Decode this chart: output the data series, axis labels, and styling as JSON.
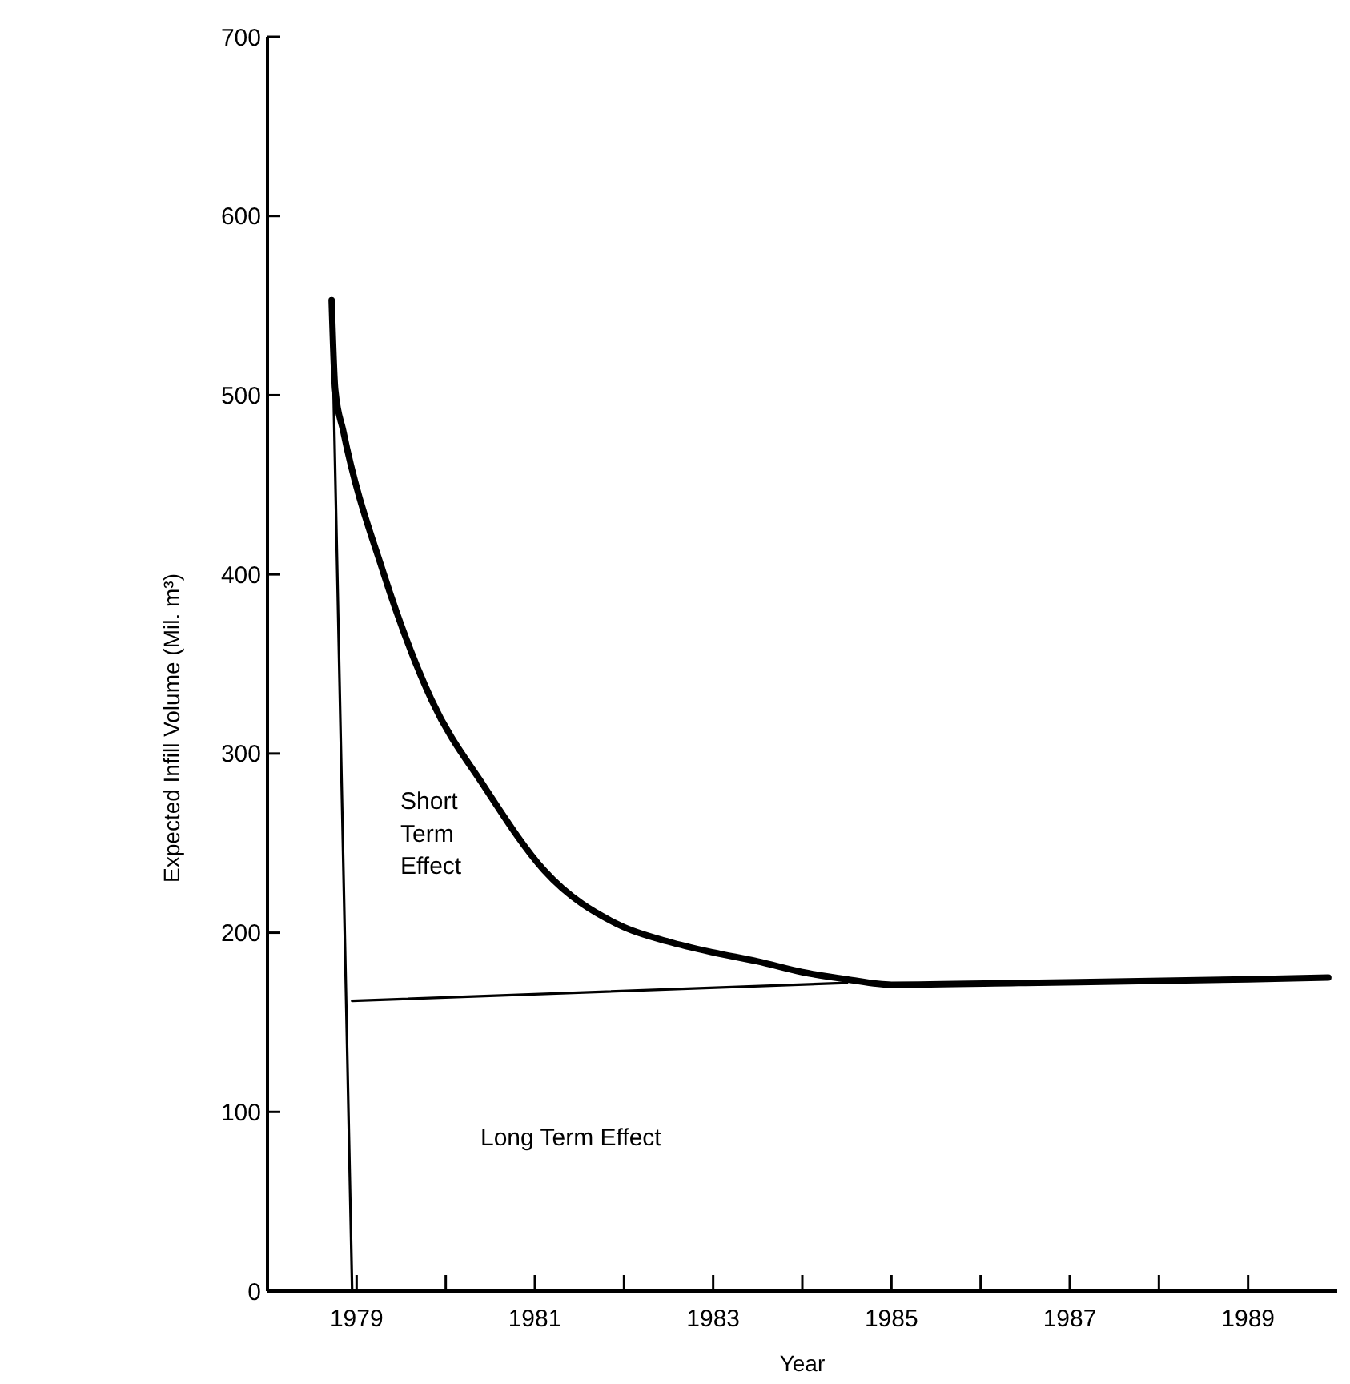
{
  "chart_data": {
    "type": "line",
    "xlabel": "Year",
    "ylabel": "Expected Infill Volume (Mil. m³)",
    "xlim": [
      1978,
      1990
    ],
    "xticks": [
      1979,
      {
        "value": 1980,
        "label": null
      },
      1981,
      {
        "value": 1982,
        "label": null
      },
      1983,
      {
        "value": 1984,
        "label": null
      },
      1985,
      {
        "value": 1986,
        "label": null
      },
      1987,
      {
        "value": 1988,
        "label": null
      },
      1989
    ],
    "ylim": [
      0,
      700
    ],
    "yticks": [
      0,
      100,
      200,
      300,
      400,
      500,
      600,
      700
    ],
    "grid": false,
    "marker": "none",
    "line_style": "solid",
    "series": [
      {
        "color": "#000000",
        "x": [
          1978.72,
          1978.76,
          1978.85,
          1979.3,
          1979.84,
          1980.44,
          1981.1,
          1981.96,
          1982.5,
          1983,
          1983.5,
          1984,
          1984.5,
          1985,
          1986.5,
          1989,
          1989.9
        ],
        "values": [
          553,
          503,
          480,
          401,
          330,
          281,
          235,
          204,
          195,
          189,
          184,
          178,
          174,
          171,
          172,
          174,
          175
        ]
      },
      {
        "color": "#000000",
        "x": [
          1978.72,
          1978.95
        ],
        "values": [
          553,
          0
        ]
      },
      {
        "color": "#000000",
        "x": [
          1978.95,
          1984.5
        ],
        "values": [
          162,
          172
        ]
      }
    ],
    "annotations": [
      "Short Term Effect",
      "Long Term Effect"
    ]
  }
}
